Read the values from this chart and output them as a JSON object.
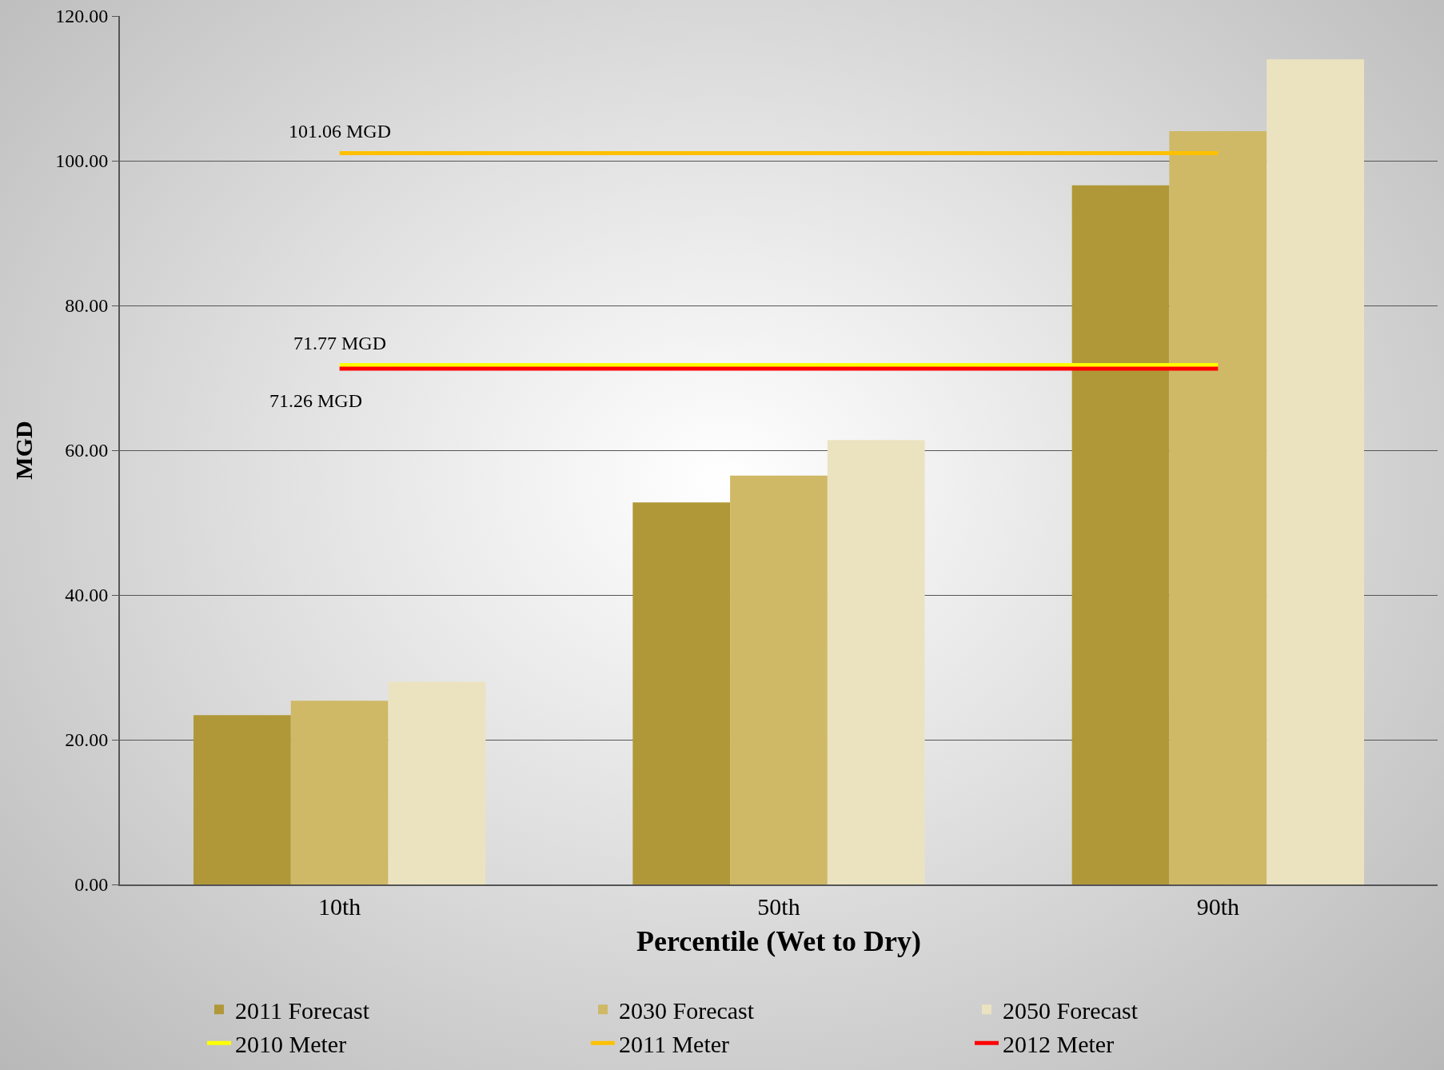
{
  "chart_data": {
    "type": "bar",
    "xlabel": "Percentile (Wet to Dry)",
    "ylabel": "MGD",
    "categories": [
      "10th",
      "50th",
      "90th"
    ],
    "series": [
      {
        "name": "2011 Forecast",
        "color": "#b09838",
        "values": [
          23.4,
          52.8,
          96.6
        ]
      },
      {
        "name": "2030 Forecast",
        "color": "#cfb966",
        "values": [
          25.4,
          56.5,
          104.1
        ]
      },
      {
        "name": "2050 Forecast",
        "color": "#ebe3c0",
        "values": [
          28.0,
          61.4,
          114.0
        ]
      },
      {
        "name": "2010 Meter",
        "type": "line",
        "color": "#ffff00",
        "values": [
          71.77,
          71.77,
          71.77
        ]
      },
      {
        "name": "2011 Meter",
        "type": "line",
        "color": "#ffc000",
        "values": [
          101.06,
          101.06,
          101.06
        ]
      },
      {
        "name": "2012 Meter",
        "type": "line",
        "color": "#ff0000",
        "values": [
          71.26,
          71.26,
          71.26
        ]
      }
    ],
    "ylim": [
      0,
      120
    ],
    "yticks": [
      {
        "value": 0,
        "label": "0.00"
      },
      {
        "value": 20,
        "label": "20.00"
      },
      {
        "value": 40,
        "label": "40.00"
      },
      {
        "value": 60,
        "label": "60.00"
      },
      {
        "value": 80,
        "label": "80.00"
      },
      {
        "value": 100,
        "label": "100.00"
      },
      {
        "value": 120,
        "label": "120.00"
      }
    ],
    "annotations": [
      {
        "text": "101.06 MGD",
        "x": "10th",
        "y": 101.06
      },
      {
        "text": "71.77 MGD",
        "x": "10th",
        "y": 71.77
      },
      {
        "text": "71.26 MGD",
        "x": "10th",
        "y": 71.26
      }
    ],
    "grid": "y",
    "legend": "bottom",
    "marker": "none",
    "line_style": "solid"
  }
}
